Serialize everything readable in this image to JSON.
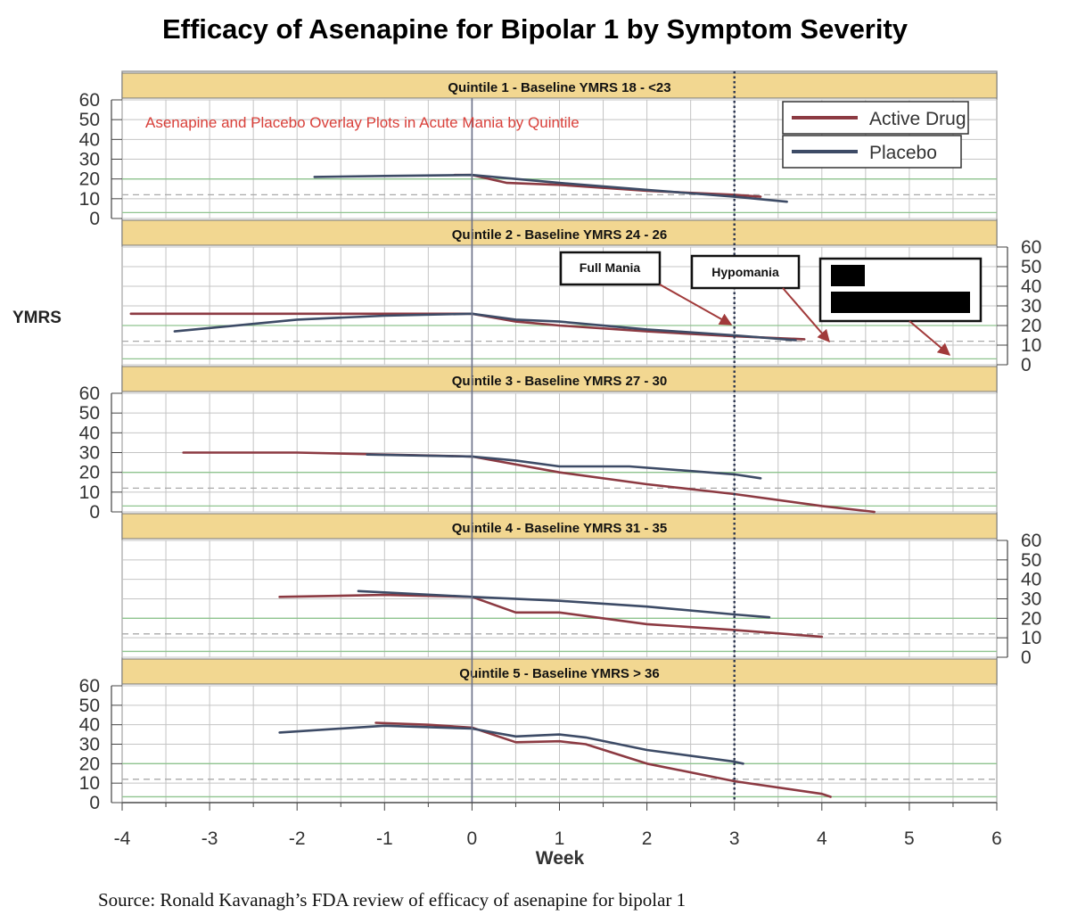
{
  "title": "Efficacy of Asenapine for Bipolar 1 by Symptom Severity",
  "subtitle": "Asenapine and Placebo Overlay Plots in Acute Mania by Quintile",
  "source": "Source: Ronald Kavanagh’s FDA review of efficacy of asenapine for bipolar 1",
  "legend": {
    "active": "Active Drug",
    "placebo": "Placebo"
  },
  "annotations": {
    "full_mania": "Full Mania",
    "hypomania": "Hypomania"
  },
  "colors": {
    "active": "#8c3a42",
    "placebo": "#3d4b66",
    "header_fill": "#f2d791",
    "grid": "#c4c4c4",
    "green_line": "#8fc48f",
    "subtitle": "#d9403a"
  },
  "chart_data": {
    "type": "line",
    "xlabel": "Week",
    "ylabel": "YMRS",
    "xlim": [
      -4,
      6
    ],
    "ylim": [
      0,
      60
    ],
    "x_ticks": [
      "-4",
      "-3",
      "-2",
      "-1",
      "0",
      "1",
      "2",
      "3",
      "4",
      "5",
      "6"
    ],
    "y_ticks": [
      "60",
      "50",
      "40",
      "30",
      "20",
      "10",
      "0"
    ],
    "reference_lines": {
      "vertical_solid_week": 0,
      "vertical_dotted_week": 3
    },
    "panels": [
      {
        "label": "Quintile 1 - Baseline YMRS 18 - <23",
        "y_axis_side": "left",
        "series": [
          {
            "name": "Active Drug",
            "points": [
              [
                -0.2,
                22
              ],
              [
                0,
                22
              ],
              [
                0.4,
                18
              ],
              [
                1,
                17
              ],
              [
                2,
                14
              ],
              [
                3,
                12
              ],
              [
                3.3,
                11
              ]
            ]
          },
          {
            "name": "Placebo",
            "points": [
              [
                -1.8,
                21
              ],
              [
                -1,
                21.5
              ],
              [
                0,
                22
              ],
              [
                1,
                18
              ],
              [
                2,
                14.5
              ],
              [
                3,
                11
              ],
              [
                3.6,
                8.5
              ]
            ]
          }
        ]
      },
      {
        "label": "Quintile 2 - Baseline YMRS 24 - 26",
        "y_axis_side": "right",
        "series": [
          {
            "name": "Active Drug",
            "points": [
              [
                -3.9,
                26
              ],
              [
                -2,
                26
              ],
              [
                -1,
                26
              ],
              [
                0,
                26
              ],
              [
                0.5,
                22
              ],
              [
                1,
                20
              ],
              [
                2,
                17
              ],
              [
                3,
                14.5
              ],
              [
                3.8,
                13
              ]
            ]
          },
          {
            "name": "Placebo",
            "points": [
              [
                -3.4,
                17
              ],
              [
                -2,
                23
              ],
              [
                -1,
                25
              ],
              [
                0,
                26
              ],
              [
                0.5,
                23
              ],
              [
                1,
                22
              ],
              [
                2,
                18
              ],
              [
                3,
                15
              ],
              [
                3.7,
                12.5
              ]
            ]
          }
        ]
      },
      {
        "label": "Quintile 3 - Baseline YMRS 27 -  30",
        "y_axis_side": "left",
        "series": [
          {
            "name": "Active Drug",
            "points": [
              [
                -3.3,
                30
              ],
              [
                -2,
                30
              ],
              [
                -1,
                29
              ],
              [
                0,
                28
              ],
              [
                1,
                20
              ],
              [
                2,
                14
              ],
              [
                3,
                9
              ],
              [
                4,
                3
              ],
              [
                4.6,
                0
              ]
            ]
          },
          {
            "name": "Placebo",
            "points": [
              [
                -1.2,
                29
              ],
              [
                0,
                28
              ],
              [
                0.5,
                26
              ],
              [
                1,
                23
              ],
              [
                1.8,
                23
              ],
              [
                3,
                19
              ],
              [
                3.3,
                17
              ]
            ]
          }
        ]
      },
      {
        "label": "Quintile 4 - Baseline YMRS 31 - 35",
        "y_axis_side": "right",
        "series": [
          {
            "name": "Active Drug",
            "points": [
              [
                -2.2,
                31
              ],
              [
                -1,
                32
              ],
              [
                0,
                31
              ],
              [
                0.5,
                23
              ],
              [
                1,
                23
              ],
              [
                2,
                17
              ],
              [
                3,
                14
              ],
              [
                4,
                10.5
              ]
            ]
          },
          {
            "name": "Placebo",
            "points": [
              [
                -1.3,
                34
              ],
              [
                0,
                31
              ],
              [
                1,
                29
              ],
              [
                2,
                26
              ],
              [
                3,
                22
              ],
              [
                3.4,
                20.5
              ]
            ]
          }
        ]
      },
      {
        "label": "Quintile 5 - Baseline YMRS > 36",
        "y_axis_side": "left",
        "series": [
          {
            "name": "Active Drug",
            "points": [
              [
                -1.1,
                41
              ],
              [
                -0.5,
                40
              ],
              [
                0,
                38.5
              ],
              [
                0.5,
                31
              ],
              [
                1,
                31.5
              ],
              [
                1.3,
                30
              ],
              [
                2,
                20
              ],
              [
                3,
                11
              ],
              [
                4,
                4.5
              ],
              [
                4.1,
                3
              ]
            ]
          },
          {
            "name": "Placebo",
            "points": [
              [
                -2.2,
                36
              ],
              [
                -1,
                39.5
              ],
              [
                0,
                38
              ],
              [
                0.5,
                34
              ],
              [
                1,
                35
              ],
              [
                1.3,
                33.5
              ],
              [
                2,
                27
              ],
              [
                3,
                21
              ],
              [
                3.1,
                20
              ]
            ]
          }
        ]
      }
    ]
  }
}
